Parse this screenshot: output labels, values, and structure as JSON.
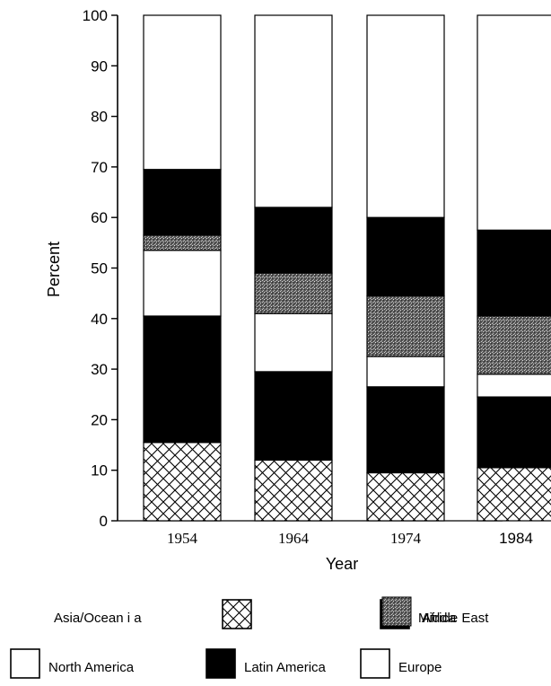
{
  "chart_data": {
    "type": "bar",
    "stacked": true,
    "xlabel": "Year",
    "ylabel": "Percent",
    "ylim": [
      0,
      100
    ],
    "yticks": [
      "0",
      "10",
      "20",
      "30",
      "40",
      "50",
      "60",
      "70",
      "80",
      "90",
      "100"
    ],
    "categories": [
      "1954",
      "1964",
      "1974",
      "1984"
    ],
    "series": [
      {
        "name": "Asia/Ocean i a",
        "pattern": "crosshatch",
        "values": [
          15.5,
          12,
          9.5,
          10.5
        ]
      },
      {
        "name": "Latin America",
        "pattern": "solid",
        "values": [
          25,
          17.5,
          17,
          14
        ]
      },
      {
        "name": "North America",
        "pattern": "white",
        "values": [
          13,
          11.5,
          6,
          4.5
        ]
      },
      {
        "name": "Africa",
        "pattern": "stipple",
        "values": [
          3,
          8,
          12,
          11.5
        ]
      },
      {
        "name": "Middle East",
        "pattern": "solid",
        "values": [
          13,
          13,
          15.5,
          17
        ]
      },
      {
        "name": "Europe",
        "pattern": "white",
        "values": [
          30.5,
          38,
          40,
          42.5
        ]
      }
    ],
    "legend_rows": [
      [
        "Asia/Ocean i a",
        "Middle East",
        "Africa"
      ],
      [
        "North America",
        "Latin America",
        "Europe"
      ]
    ],
    "colors": {
      "solid": "#000000",
      "white": "#ffffff",
      "stipple": "#6e6e6e",
      "hatch": "#000000"
    }
  }
}
